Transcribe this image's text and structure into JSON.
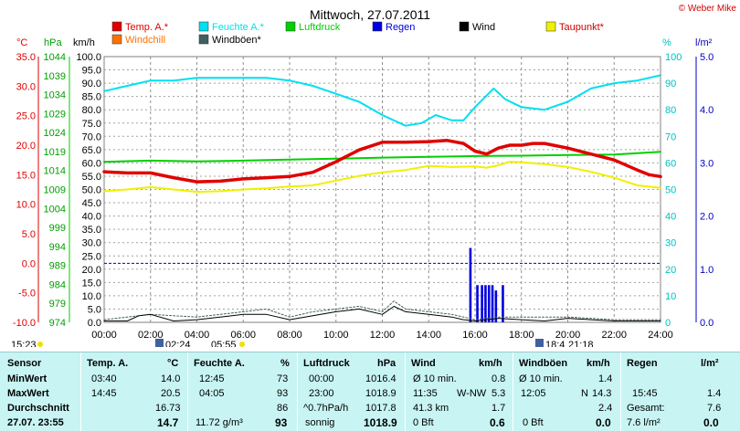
{
  "header": {
    "title": "Mittwoch, 27.07.2011",
    "credit": "© Weber Mike"
  },
  "legend": [
    {
      "label": "Temp. A.*",
      "color": "#e00000"
    },
    {
      "label": "Feuchte A.*",
      "color": "#00e0f0"
    },
    {
      "label": "Luftdruck",
      "color": "#00d000"
    },
    {
      "label": "Regen",
      "color": "#0000e0"
    },
    {
      "label": "Wind",
      "color": "#000000"
    },
    {
      "label": "Taupunkt*",
      "color": "#f0f000"
    },
    {
      "label": "Windchill",
      "color": "#ff7000"
    },
    {
      "label": "Windböen*",
      "color": "#406060"
    }
  ],
  "axis_units": {
    "temp": "°C",
    "pressure": "hPa",
    "wind": "km/h",
    "humidity": "%",
    "rain": "l/m²"
  },
  "below_axis": {
    "sunrise": "05:55",
    "sunset": "21:18",
    "time_left": "15:23",
    "moonrise": "02:24",
    "moonset": "18:4"
  },
  "chart_data": {
    "type": "line",
    "title": "Mittwoch, 27.07.2011",
    "x_ticks": [
      "00:00",
      "02:00",
      "04:00",
      "06:00",
      "08:00",
      "10:00",
      "12:00",
      "14:00",
      "16:00",
      "18:00",
      "20:00",
      "22:00",
      "24:00"
    ],
    "axes": {
      "temp": {
        "range": [
          -10,
          35
        ],
        "ticks": [
          "35.0",
          "30.0",
          "25.0",
          "20.0",
          "15.0",
          "10.0",
          "5.0",
          "0.0",
          "-5.0",
          "-10.0"
        ],
        "color": "#e00000"
      },
      "pressure": {
        "range": [
          974,
          1044
        ],
        "ticks": [
          "1044",
          "1039",
          "1034",
          "1029",
          "1024",
          "1019",
          "1014",
          "1009",
          "1004",
          "999",
          "994",
          "989",
          "984",
          "979",
          "974"
        ],
        "color": "#00a000"
      },
      "wind": {
        "range": [
          0,
          100
        ],
        "ticks": [
          "100.0",
          "95.0",
          "90.0",
          "85.0",
          "80.0",
          "75.0",
          "70.0",
          "65.0",
          "60.0",
          "55.0",
          "50.0",
          "45.0",
          "40.0",
          "35.0",
          "30.0",
          "25.0",
          "20.0",
          "15.0",
          "10.0",
          "5.0",
          "0.0"
        ],
        "color": "#000000"
      },
      "humidity": {
        "range": [
          0,
          100
        ],
        "ticks": [
          "100",
          "90",
          "80",
          "70",
          "60",
          "50",
          "40",
          "30",
          "20",
          "10",
          "0"
        ],
        "color": "#00c0c0"
      },
      "rain": {
        "range": [
          0,
          5
        ],
        "ticks": [
          "5.0",
          "4.0",
          "3.0",
          "2.0",
          "1.0",
          "0.0"
        ],
        "color": "#0000c0"
      }
    },
    "series": [
      {
        "name": "Temp. A.*",
        "axis": "temp",
        "color": "#e00000",
        "width": 3.5,
        "x": [
          0,
          1,
          2,
          3,
          4,
          5,
          6,
          7,
          8,
          9,
          10,
          11,
          12,
          13,
          14,
          14.8,
          15.5,
          16,
          16.5,
          17,
          17.5,
          18,
          18.5,
          19,
          20,
          21,
          22,
          23,
          23.5,
          24
        ],
        "y": [
          15.5,
          15.3,
          15.3,
          14.5,
          13.8,
          13.9,
          14.3,
          14.5,
          14.7,
          15.4,
          17.2,
          19.2,
          20.5,
          20.5,
          20.6,
          20.8,
          20.3,
          19,
          18.5,
          19.5,
          20,
          20,
          20.3,
          20.3,
          19.5,
          18.5,
          17.5,
          15.8,
          15,
          14.7
        ]
      },
      {
        "name": "Feuchte A.*",
        "axis": "humidity",
        "color": "#00e0f0",
        "width": 2,
        "x": [
          0,
          1,
          2,
          3,
          4,
          5,
          6,
          7,
          8,
          9,
          10,
          11,
          12,
          13,
          13.7,
          14.3,
          15,
          15.5,
          16,
          16.8,
          17.3,
          18,
          19,
          20,
          21,
          22,
          23,
          24
        ],
        "y": [
          87,
          89,
          91,
          91,
          92,
          92,
          92,
          92,
          91,
          89,
          86,
          83,
          78,
          74,
          75,
          78,
          76,
          76,
          81,
          88,
          84,
          81,
          80,
          83,
          88,
          90,
          91,
          93
        ]
      },
      {
        "name": "Luftdruck",
        "axis": "pressure",
        "color": "#00d000",
        "width": 2,
        "x": [
          0,
          2,
          4,
          6,
          8,
          10,
          12,
          14,
          16,
          18,
          20,
          22,
          24
        ],
        "y": [
          1016.3,
          1016.6,
          1016.4,
          1016.6,
          1016.9,
          1017.1,
          1017.4,
          1017.6,
          1017.8,
          1017.9,
          1018.1,
          1018.2,
          1018.9
        ]
      },
      {
        "name": "Taupunkt*",
        "axis": "temp",
        "color": "#f0f000",
        "width": 2,
        "x": [
          0,
          1,
          2,
          3,
          4,
          5,
          6,
          7,
          8,
          9,
          10,
          11,
          12,
          13,
          14,
          15,
          16,
          16.5,
          17,
          17.5,
          18,
          19,
          20,
          21,
          22,
          23,
          24
        ],
        "y": [
          12.2,
          12.5,
          12.9,
          12.5,
          12.1,
          12.2,
          12.5,
          12.7,
          13,
          13.2,
          14,
          14.8,
          15.4,
          15.8,
          16.5,
          16.3,
          16.4,
          16.2,
          16.6,
          17.2,
          17.1,
          16.8,
          16.3,
          15.5,
          14.5,
          13.2,
          12.8
        ]
      },
      {
        "name": "Wind",
        "axis": "wind",
        "color": "#000000",
        "width": 1,
        "x": [
          0,
          1,
          1.5,
          2,
          3,
          4,
          5,
          6,
          7,
          8,
          9,
          10,
          11,
          12,
          12.5,
          13,
          14,
          15,
          15.5,
          16,
          17,
          18,
          19,
          20,
          21,
          22,
          23,
          24
        ],
        "y": [
          0.5,
          0.5,
          2.5,
          3,
          0.5,
          1,
          2,
          3,
          3,
          1,
          2.5,
          4,
          5,
          3,
          6,
          4,
          3,
          2,
          1,
          0.5,
          1.5,
          1,
          0.5,
          1.5,
          1,
          0.5,
          0.5,
          0.5
        ]
      },
      {
        "name": "Windböen*",
        "axis": "wind",
        "color": "#406060",
        "width": 1,
        "x": [
          0,
          2,
          4,
          5,
          6,
          7,
          8,
          9,
          10,
          11,
          12,
          12.5,
          13,
          14,
          15,
          16,
          17,
          18,
          20,
          22,
          24
        ],
        "y": [
          1,
          3,
          2,
          3,
          4,
          5,
          2,
          4,
          5,
          6,
          4,
          8,
          5,
          4,
          3,
          1,
          2,
          2,
          2,
          1,
          1
        ]
      }
    ],
    "rain_bars": {
      "axis": "rain",
      "color": "#0000e0",
      "x": [
        15.8,
        16.1,
        16.3,
        16.45,
        16.6,
        16.75,
        16.9,
        17.2
      ],
      "y": [
        1.4,
        0.7,
        0.7,
        0.7,
        0.7,
        0.7,
        0.6,
        0.7
      ]
    },
    "reference_line": {
      "axis": "temp",
      "value": 0
    }
  },
  "summary": {
    "row_labels": [
      "Sensor",
      "MinWert",
      "MaxWert",
      "Durchschnitt",
      "27.07.  23:55"
    ],
    "temp": {
      "title": "Temp. A.",
      "unit": "°C",
      "min_time": "03:40",
      "min": "14.0",
      "max_time": "14:45",
      "max": "20.5",
      "avg": "16.73",
      "cur": "14.7"
    },
    "humidity": {
      "title": "Feuchte A.",
      "unit": "%",
      "min_time": "12:45",
      "min": "73",
      "max_time": "04:05",
      "max": "93",
      "avg": "86",
      "abs": "11.72 g/m³",
      "cur": "93"
    },
    "pressure": {
      "title": "Luftdruck",
      "unit": "hPa",
      "min_time": "00:00",
      "min": "1016.4",
      "max_time": "23:00",
      "max": "1018.9",
      "trend": "^0.7hPa/h",
      "avg": "1017.8",
      "forecast": "sonnig",
      "cur": "1018.9"
    },
    "wind": {
      "title": "Wind",
      "unit": "km/h",
      "r1_label": "Ø 10 min.",
      "r1": "0.8",
      "r2_time": "11:35",
      "r2_dir": "W-NW",
      "r2": "5.3",
      "r3_label": "41.3 km",
      "r3": "1.7",
      "r4_label": "0 Bft",
      "r4": "0.6"
    },
    "gusts": {
      "title": "Windböen",
      "unit": "km/h",
      "r1_label": "Ø 10 min.",
      "r1": "1.4",
      "r2_time": "12:05",
      "r2_dir": "N",
      "r2": "14.3",
      "r3": "2.4",
      "r4_label": "0 Bft",
      "r4": "0.0"
    },
    "rain": {
      "title": "Regen",
      "unit": "l/m²",
      "r2_time": "15:45",
      "r2": "1.4",
      "r3_label": "Gesamt:",
      "r3": "7.6",
      "r4_label": "7.6 l/m²",
      "r4": "0.0"
    }
  }
}
